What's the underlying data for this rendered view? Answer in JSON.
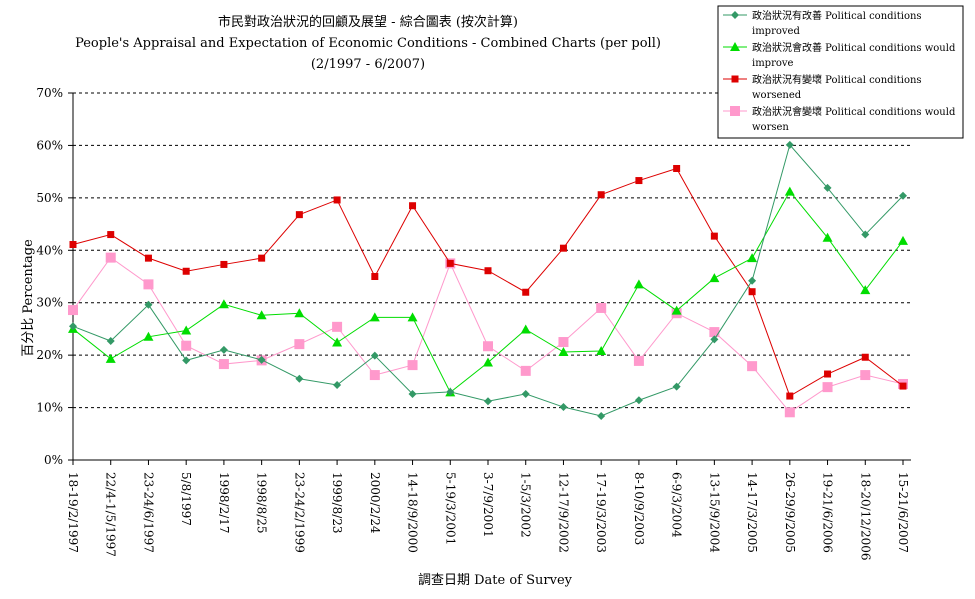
{
  "chart_data": {
    "type": "line",
    "title": "市民對政治狀況的回顧及展望 - 綜合圖表  (按次計算)",
    "subtitle": "People's Appraisal and Expectation of Economic Conditions - Combined Charts  (per poll)",
    "period": "(2/1997 - 6/2007)",
    "xlabel": "調查日期 Date of Survey",
    "ylabel": "百分比 Percentage",
    "ylim": [
      0,
      70
    ],
    "yticks": [
      "0%",
      "10%",
      "20%",
      "30%",
      "40%",
      "50%",
      "60%",
      "70%"
    ],
    "grid": "horizontal-dashed",
    "legend_position": "top-right",
    "categories": [
      "18-19/2/1997",
      "22/4-1/5/1997",
      "23-24/6/1997",
      "5/8/1997",
      "1998/2/17",
      "1998/8/25",
      "23-24/2/1999",
      "1999/8/23",
      "2000/2/24",
      "14-18/9/2000",
      "5-19/3/2001",
      "3-7/9/2001",
      "1-5/3/2002",
      "12-17/9/2002",
      "17-19/3/2003",
      "8-10/9/2003",
      "6-9/3/2004",
      "13-15/9/2004",
      "14-17/3/2005",
      "26-29/9/2005",
      "19-21/6/2006",
      "18-20/12/2006",
      "15-21/6/2007"
    ],
    "series": [
      {
        "name_line1": "政治狀況有改善 Political conditions",
        "name_line2": "improved",
        "color": "#339966",
        "marker": "diamond",
        "values": [
          25.5,
          22.7,
          29.6,
          19.0,
          21.0,
          19.1,
          15.5,
          14.3,
          19.9,
          12.6,
          13.0,
          11.2,
          12.6,
          10.1,
          8.4,
          11.4,
          14.0,
          23.0,
          34.2,
          60.1,
          51.9,
          43.0,
          50.4
        ]
      },
      {
        "name_line1": "政治狀況會改善 Political conditions would",
        "name_line2": "improve",
        "color": "#00dd00",
        "marker": "triangle",
        "values": [
          25.0,
          19.3,
          23.5,
          24.7,
          29.7,
          27.6,
          28.0,
          22.4,
          27.2,
          27.2,
          12.9,
          18.6,
          24.9,
          20.6,
          20.8,
          33.5,
          28.5,
          34.7,
          38.5,
          51.2,
          42.4,
          32.4,
          41.8
        ]
      },
      {
        "name_line1": "政治狀況有變壞 Political conditions",
        "name_line2": "worsened",
        "color": "#dd0000",
        "marker": "square",
        "values": [
          41.1,
          43.0,
          38.5,
          36.0,
          37.3,
          38.5,
          46.8,
          49.6,
          35.0,
          48.5,
          37.5,
          36.1,
          32.0,
          40.4,
          50.6,
          53.3,
          55.6,
          42.7,
          32.1,
          12.2,
          16.4,
          19.6,
          14.1
        ]
      },
      {
        "name_line1": "政治狀況會變壞 Political conditions would",
        "name_line2": "worsen",
        "color": "#ff99cc",
        "marker": "square-large",
        "values": [
          28.6,
          38.6,
          33.5,
          21.8,
          18.3,
          19.0,
          22.1,
          25.4,
          16.2,
          18.1,
          37.5,
          21.7,
          17.0,
          22.5,
          29.0,
          18.9,
          28.0,
          24.4,
          17.9,
          9.1,
          13.9,
          16.2,
          14.5
        ]
      }
    ]
  }
}
